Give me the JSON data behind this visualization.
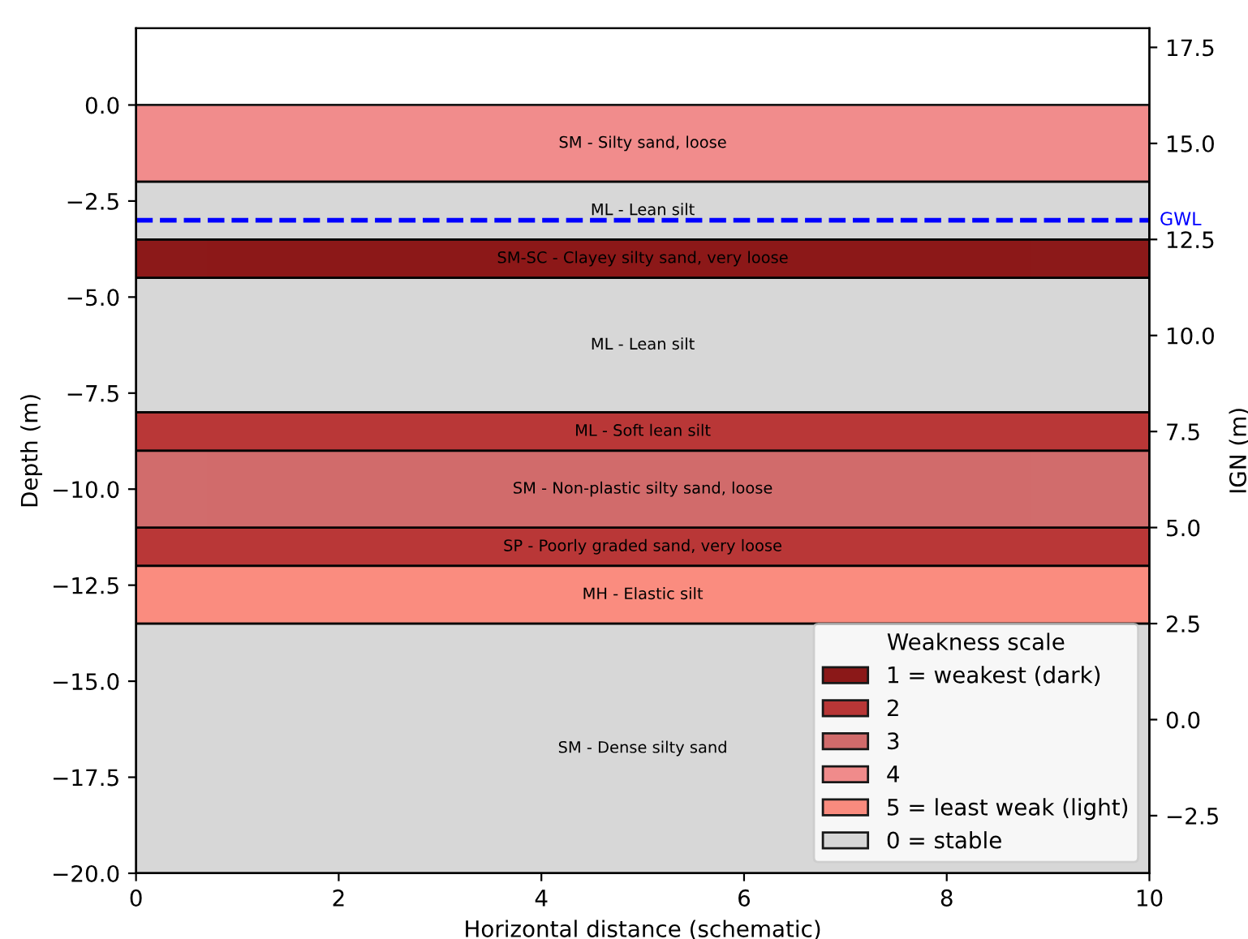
{
  "chart_data": {
    "type": "histogram",
    "orientation": "horizontal",
    "xlabel": "Horizontal distance (schematic)",
    "ylabel": "Depth (m)",
    "y2label": "IGN (m)",
    "xlim": [
      0,
      10
    ],
    "xticks": [
      0,
      2,
      4,
      6,
      8,
      10
    ],
    "ylim": [
      -20,
      2
    ],
    "yticks": [
      {
        "value": -20,
        "label": "−20.0"
      },
      {
        "value": -17.5,
        "label": "−17.5"
      },
      {
        "value": -15,
        "label": "−15.0"
      },
      {
        "value": -12.5,
        "label": "−12.5"
      },
      {
        "value": -10,
        "label": "−10.0"
      },
      {
        "value": -7.5,
        "label": "−7.5"
      },
      {
        "value": -5,
        "label": "−5.0"
      },
      {
        "value": -2.5,
        "label": "−2.5"
      },
      {
        "value": 0,
        "label": "0.0"
      }
    ],
    "y2lim": [
      -4,
      18
    ],
    "y2ticks": [
      {
        "value": -2.5,
        "label": "−2.5"
      },
      {
        "value": 0,
        "label": "0.0"
      },
      {
        "value": 2.5,
        "label": "2.5"
      },
      {
        "value": 5,
        "label": "5.0"
      },
      {
        "value": 7.5,
        "label": "7.5"
      },
      {
        "value": 10,
        "label": "10.0"
      },
      {
        "value": 12.5,
        "label": "12.5"
      },
      {
        "value": 15,
        "label": "15.0"
      },
      {
        "value": 17.5,
        "label": "17.5"
      }
    ],
    "bins": [
      -20,
      -13.5,
      -12,
      -11,
      -9,
      -8,
      -4.5,
      -3.5,
      -2,
      0
    ],
    "annotations": [
      "SM - Dense silty sand",
      "MH - Elastic silt",
      "SP - Poorly graded sand, very loose",
      "SM - Non-plastic silty sand, loose",
      "ML - Soft lean silt",
      "ML - Lean silt",
      "SM-SC - Clayey silty sand, very loose",
      "ML - Lean silt",
      "SM - Silty sand, loose"
    ],
    "ref_lines": [
      {
        "axis": "y",
        "value": -3,
        "label": "GWL",
        "color": "#0000ff",
        "line_style": "dashed"
      }
    ],
    "legend_title": "Weakness scale",
    "legend": "bottom right",
    "series": [
      {
        "name": "1 = weakest (dark)",
        "color": "#800000",
        "values": [
          null,
          null,
          null,
          null,
          null,
          null,
          10,
          null,
          null
        ]
      },
      {
        "name": "2",
        "color": "#b22222",
        "values": [
          null,
          null,
          10,
          null,
          10,
          null,
          null,
          null,
          null
        ]
      },
      {
        "name": "3",
        "color": "#cd5c5c",
        "values": [
          null,
          null,
          null,
          10,
          null,
          null,
          null,
          null,
          null
        ]
      },
      {
        "name": "4",
        "color": "#f08080",
        "values": [
          null,
          null,
          null,
          null,
          null,
          null,
          null,
          null,
          10
        ]
      },
      {
        "name": "5 = least weak (light)",
        "color": "#fa8072",
        "values": [
          null,
          10,
          null,
          null,
          null,
          null,
          null,
          null,
          null
        ]
      },
      {
        "name": "0 = stable",
        "color": "#d3d3d3",
        "values": [
          10,
          null,
          null,
          null,
          null,
          10,
          null,
          10,
          null
        ]
      }
    ]
  }
}
